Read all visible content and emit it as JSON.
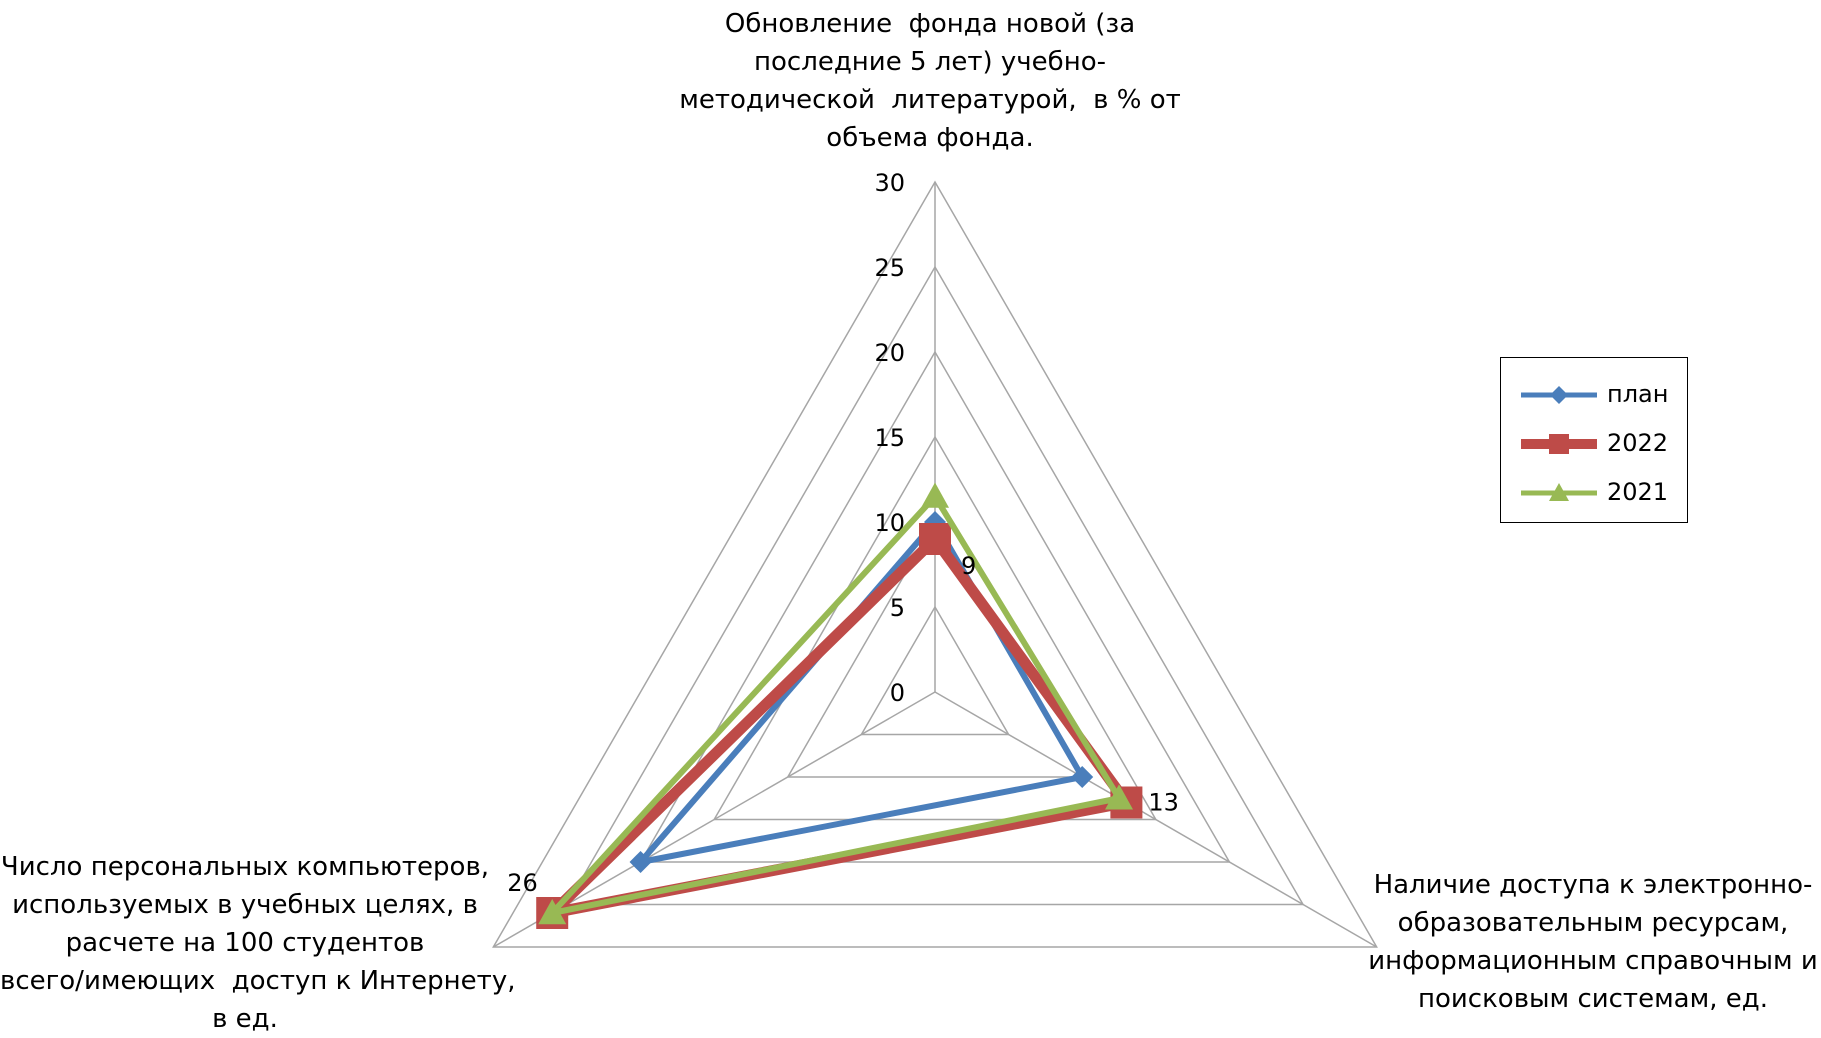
{
  "chart_data": {
    "type": "radar",
    "axes": [
      {
        "id": "top",
        "label_lines": [
          "Обновление  фонда новой (за",
          "последние 5 лет) учебно-",
          "методической  литературой,  в % от",
          "объема фонда."
        ]
      },
      {
        "id": "right",
        "label_lines": [
          "Наличие доступа к электронно-",
          "образовательным ресурсам,",
          "информационным справочным и",
          "поисковым системам, ед."
        ]
      },
      {
        "id": "left",
        "label_lines": [
          "Число персональных компьютеров,",
          "используемых в учебных целях, в",
          "расчете на 100 студентов",
          "всего/имеющих  доступ к Интернету,",
          "в ед."
        ]
      }
    ],
    "rlim": [
      0,
      30
    ],
    "ticks": [
      "0",
      "5",
      "10",
      "15",
      "20",
      "25",
      "30"
    ],
    "tick_values": [
      0,
      5,
      10,
      15,
      20,
      25,
      30
    ],
    "grid": true,
    "legend_position": "right",
    "series": [
      {
        "name": "план",
        "color": "#4a7ebb",
        "marker": "diamond",
        "values": [
          10,
          10,
          20
        ]
      },
      {
        "name": "2022",
        "color": "#be4b48",
        "marker": "square",
        "values": [
          9,
          13,
          26
        ]
      },
      {
        "name": "2021",
        "color": "#98b954",
        "marker": "triangle",
        "values": [
          11.5,
          12.5,
          26
        ]
      }
    ],
    "data_labels": [
      {
        "series": "2022",
        "axis": 0,
        "text": "9"
      },
      {
        "series": "2022",
        "axis": 1,
        "text": "13"
      },
      {
        "series": "2022",
        "axis": 2,
        "text": "26"
      }
    ]
  }
}
